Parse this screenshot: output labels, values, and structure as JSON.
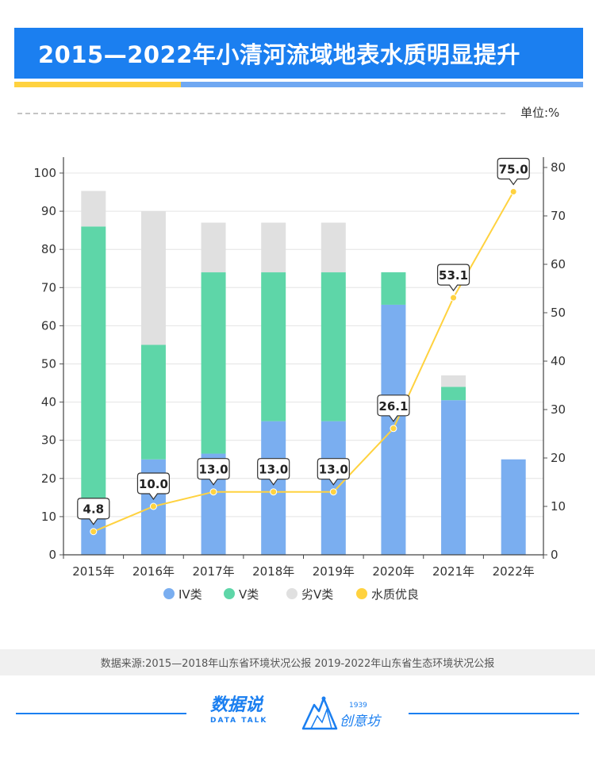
{
  "header": {
    "title": "2015—2022年小清河流域地表水质明显提升",
    "unit": "单位:%"
  },
  "colors": {
    "iv": "#7aaef0",
    "v": "#5ed6a8",
    "bad_v": "#e0e0e0",
    "good": "#ffd23f",
    "banner": "#1b7ff0"
  },
  "chart_data": {
    "type": "bar",
    "stacked": true,
    "categories": [
      "2015年",
      "2016年",
      "2017年",
      "2018年",
      "2019年",
      "2020年",
      "2021年",
      "2022年"
    ],
    "series": [
      {
        "name": "IV类",
        "type": "bar",
        "axis": "left",
        "values": [
          9.5,
          25,
          26.5,
          35,
          35,
          65.5,
          40.5,
          25
        ]
      },
      {
        "name": "V类",
        "type": "bar",
        "axis": "left",
        "values": [
          76.5,
          30,
          47.5,
          39,
          39,
          8.5,
          3.5,
          0
        ]
      },
      {
        "name": "劣V类",
        "type": "bar",
        "axis": "left",
        "values": [
          9.3,
          35,
          13,
          13,
          13,
          0,
          3,
          0
        ]
      },
      {
        "name": "水质优良",
        "type": "line",
        "axis": "right",
        "values": [
          4.8,
          10.0,
          13.0,
          13.0,
          13.0,
          26.1,
          53.1,
          75.0
        ],
        "labels": [
          "4.8",
          "10.0",
          "13.0",
          "13.0",
          "13.0",
          "26.1",
          "53.1",
          "75.0"
        ]
      }
    ],
    "ylim_left": [
      0,
      100
    ],
    "yticks_left": [
      "0",
      "10",
      "20",
      "30",
      "40",
      "50",
      "60",
      "70",
      "80",
      "90",
      "100"
    ],
    "ylim_right": [
      0,
      80
    ],
    "yticks_right": [
      "0",
      "10",
      "20",
      "30",
      "40",
      "50",
      "60",
      "70",
      "80"
    ],
    "legend": [
      "IV类",
      "V类",
      "劣V类",
      "水质优良"
    ],
    "legend_position": "bottom",
    "grid": true
  },
  "source": "数据来源:2015—2018年山东省环境状况公报 2019-2022年山东省生态环境状况公报",
  "logos": {
    "datatalk_main": "数据说",
    "datatalk_sub": "DATA TALK",
    "cyf_year": "1939",
    "cyf_text": "创意坊"
  }
}
